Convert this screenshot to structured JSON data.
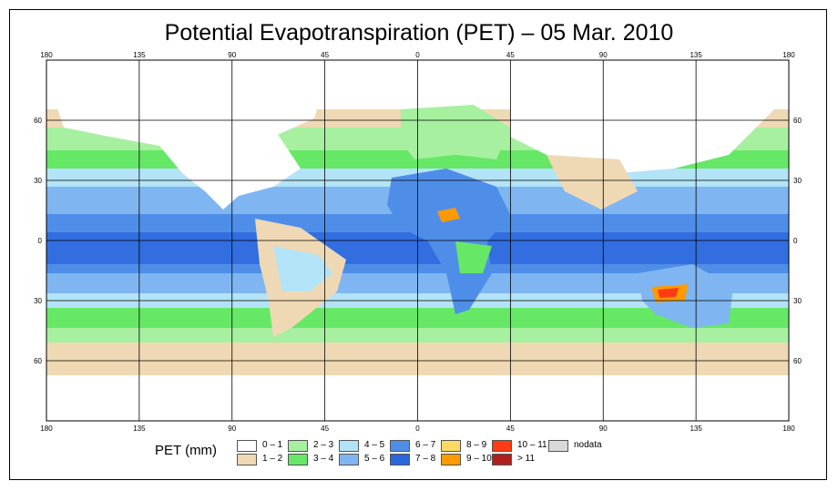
{
  "title": "Potential Evapotranspiration (PET) – 05 Mar. 2010",
  "map": {
    "lon_ticks": [
      "180",
      "135",
      "90",
      "45",
      "0",
      "45",
      "90",
      "135",
      "180"
    ],
    "lat_ticks": [
      "60",
      "30",
      "0",
      "30",
      "60"
    ],
    "lat_values": [
      60,
      30,
      0,
      -30,
      -60
    ],
    "lon_values": [
      -180,
      -135,
      -90,
      -45,
      0,
      45,
      90,
      135,
      180
    ]
  },
  "legend": {
    "title": "PET (mm)",
    "items": [
      {
        "label": "0 – 1",
        "color": "#ffffff"
      },
      {
        "label": "1 – 2",
        "color": "#efd9b4"
      },
      {
        "label": "2 – 3",
        "color": "#a6f0a0"
      },
      {
        "label": "3 – 4",
        "color": "#66e866"
      },
      {
        "label": "4 – 5",
        "color": "#b3e3f7"
      },
      {
        "label": "5 – 6",
        "color": "#7fb6f2"
      },
      {
        "label": "6 – 7",
        "color": "#4f8ee8"
      },
      {
        "label": "7 – 8",
        "color": "#2a66dc"
      },
      {
        "label": "8 – 9",
        "color": "#ffd966"
      },
      {
        "label": "9 – 10",
        "color": "#ff9a00"
      },
      {
        "label": "10 – 11",
        "color": "#ff3b14"
      },
      {
        "label": "> 11",
        "color": "#b01e1e"
      },
      {
        "label": "nodata",
        "color": "#d9d9d9"
      }
    ]
  }
}
